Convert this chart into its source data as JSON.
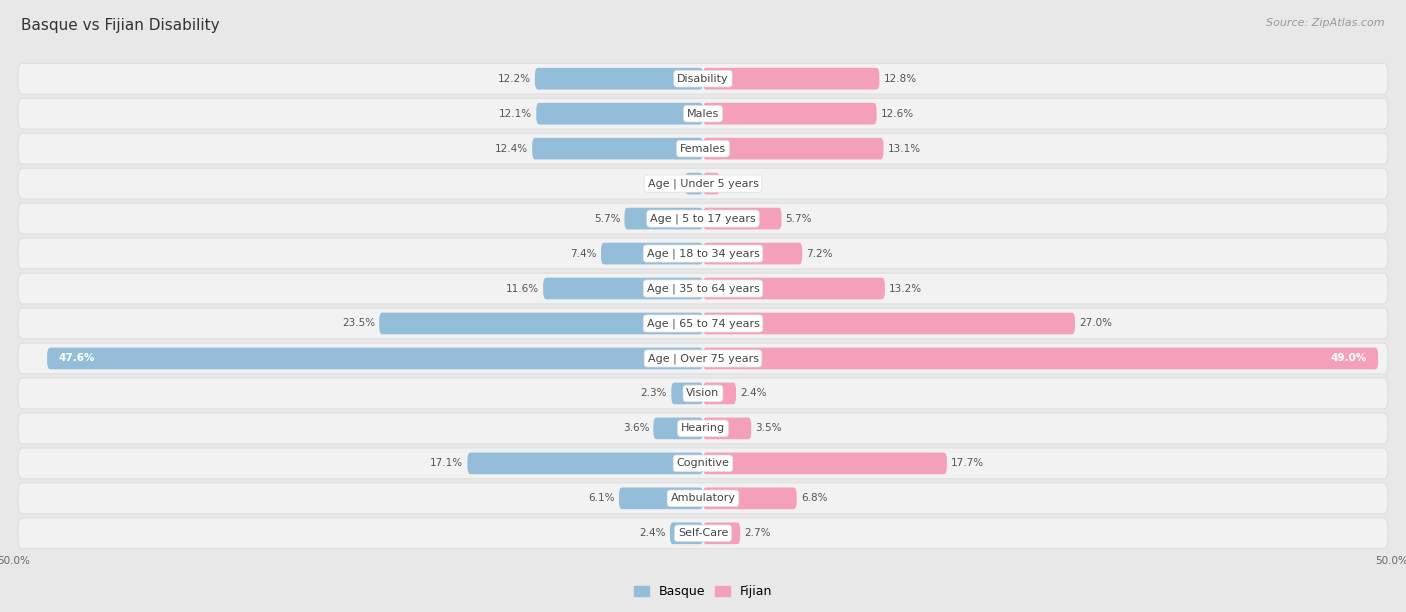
{
  "title": "Basque vs Fijian Disability",
  "source": "Source: ZipAtlas.com",
  "categories": [
    "Disability",
    "Males",
    "Females",
    "Age | Under 5 years",
    "Age | 5 to 17 years",
    "Age | 18 to 34 years",
    "Age | 35 to 64 years",
    "Age | 65 to 74 years",
    "Age | Over 75 years",
    "Vision",
    "Hearing",
    "Cognitive",
    "Ambulatory",
    "Self-Care"
  ],
  "basque_values": [
    12.2,
    12.1,
    12.4,
    1.3,
    5.7,
    7.4,
    11.6,
    23.5,
    47.6,
    2.3,
    3.6,
    17.1,
    6.1,
    2.4
  ],
  "fijian_values": [
    12.8,
    12.6,
    13.1,
    1.2,
    5.7,
    7.2,
    13.2,
    27.0,
    49.0,
    2.4,
    3.5,
    17.7,
    6.8,
    2.7
  ],
  "max_value": 50.0,
  "basque_color": "#94bdd9",
  "fijian_color": "#f4a0b8",
  "fijian_color_dark": "#e8658a",
  "bg_color": "#e8e8e8",
  "row_bg_color": "#f2f2f2",
  "row_sep_color": "#d8d8d8",
  "label_bg_color": "#ffffff",
  "title_fontsize": 11,
  "label_fontsize": 8,
  "value_fontsize": 7.5,
  "legend_fontsize": 9,
  "source_fontsize": 8
}
